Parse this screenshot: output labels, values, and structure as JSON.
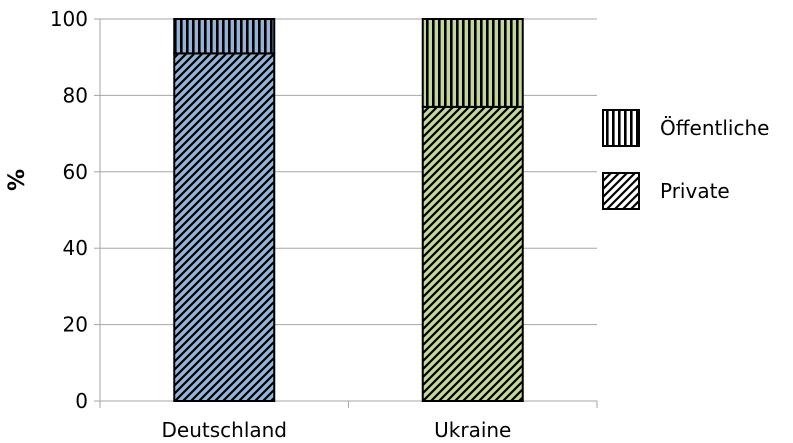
{
  "chart_data": {
    "type": "bar",
    "stacked": true,
    "percent_stacked": true,
    "title": "",
    "xlabel": "",
    "ylabel": "%",
    "ylim": [
      0,
      100
    ],
    "yticks": [
      0,
      20,
      40,
      60,
      80,
      100
    ],
    "grid": true,
    "legend_position": "right",
    "categories": [
      "Deutschland",
      "Ukraine"
    ],
    "bar_colors": [
      "#95B3D7",
      "#C3D69B"
    ],
    "series": [
      {
        "name": "Private",
        "pattern": "diagonal-hatch",
        "values": [
          91,
          77
        ]
      },
      {
        "name": "Öffentliche",
        "pattern": "vertical-lines",
        "values": [
          9,
          23
        ]
      }
    ],
    "legend_order": [
      "Öffentliche",
      "Private"
    ]
  }
}
